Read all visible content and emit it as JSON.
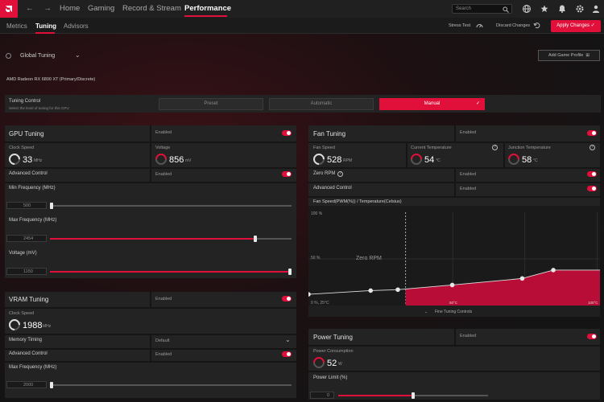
{
  "nav": {
    "tabs": [
      "Home",
      "Gaming",
      "Record & Stream",
      "Performance"
    ],
    "search_placeholder": "Search"
  },
  "subnav": {
    "tabs": [
      "Metrics",
      "Tuning",
      "Advisors"
    ],
    "stress_test": "Stress Test",
    "discard": "Discard Changes",
    "apply": "Apply Changes"
  },
  "profile": {
    "global_tuning": "Global Tuning",
    "add_game_profile": "Add Game Profile"
  },
  "gpu_name": "AMD Radeon RX 6800 XT (Primary/Discrete)",
  "tuning_control": {
    "title": "Tuning Control",
    "desc": "Select the level of tuning for this GPU",
    "options": [
      "Preset",
      "Automatic",
      "Manual"
    ],
    "selected": "Manual"
  },
  "gpu_tuning": {
    "title": "GPU Tuning",
    "enabled": "Enabled",
    "clock_label": "Clock Speed",
    "clock_value": "33",
    "clock_unit": "MHz",
    "voltage_label": "Voltage",
    "voltage_value": "856",
    "voltage_unit": "mV",
    "advanced_label": "Advanced Control",
    "advanced_state": "Enabled",
    "min_freq_label": "Min Frequency (MHz)",
    "min_freq_value": "500",
    "min_freq_level": 0.0,
    "max_freq_label": "Max Frequency (MHz)",
    "max_freq_value": "2454",
    "max_freq_level": 0.85,
    "voltage_slider_label": "Voltage (mV)",
    "voltage_slider_value": "1150",
    "voltage_slider_level": 1.0
  },
  "vram_tuning": {
    "title": "VRAM Tuning",
    "enabled": "Enabled",
    "clock_label": "Clock Speed",
    "clock_value": "1988",
    "clock_unit": "MHz",
    "memory_timing_label": "Memory Timing",
    "memory_timing_value": "Default",
    "advanced_label": "Advanced Control",
    "advanced_state": "Enabled",
    "max_freq_label": "Max Frequency (MHz)",
    "max_freq_value": "2000",
    "max_freq_level": 0.0
  },
  "fan_tuning": {
    "title": "Fan Tuning",
    "enabled": "Enabled",
    "fan_speed_label": "Fan Speed",
    "fan_speed_value": "528",
    "fan_speed_unit": "RPM",
    "cur_temp_label": "Current Temperature",
    "cur_temp_value": "54",
    "cur_temp_unit": "°C",
    "junction_label": "Junction Temperature",
    "junction_value": "58",
    "junction_unit": "°C",
    "zero_rpm_label": "Zero RPM",
    "zero_rpm_state": "Enabled",
    "advanced_label": "Advanced Control",
    "advanced_state": "Enabled",
    "curve_title": "Fan Speed(PWM(%)) / Temperature(Celsius)",
    "y_top": "100 %",
    "y_mid": "50 %",
    "y_bottom": "0 %, 25°C",
    "zero_rpm_text": "Zero RPM",
    "x_mid": "50°C",
    "x_right": "100°C",
    "fine_tuning": "Fine Tuning Controls"
  },
  "power_tuning": {
    "title": "Power Tuning",
    "enabled": "Enabled",
    "consumption_label": "Power Consumption",
    "consumption_value": "52",
    "consumption_unit": "W",
    "limit_label": "Power Limit (%)",
    "limit_value": "0",
    "limit_level": 0.5
  },
  "colors": {
    "accent": "#e0103a",
    "panel": "#232323",
    "background": "#141414"
  },
  "chart_data": {
    "type": "area",
    "title": "Fan Speed(PWM(%)) / Temperature(Celsius)",
    "xlabel": "",
    "ylabel": "",
    "x": [
      25,
      41,
      48,
      62,
      80,
      88
    ],
    "y": [
      12,
      16,
      17,
      22,
      29,
      38
    ],
    "zero_rpm_threshold_x": 50,
    "xlim": [
      25,
      100
    ],
    "ylim": [
      0,
      100
    ]
  }
}
